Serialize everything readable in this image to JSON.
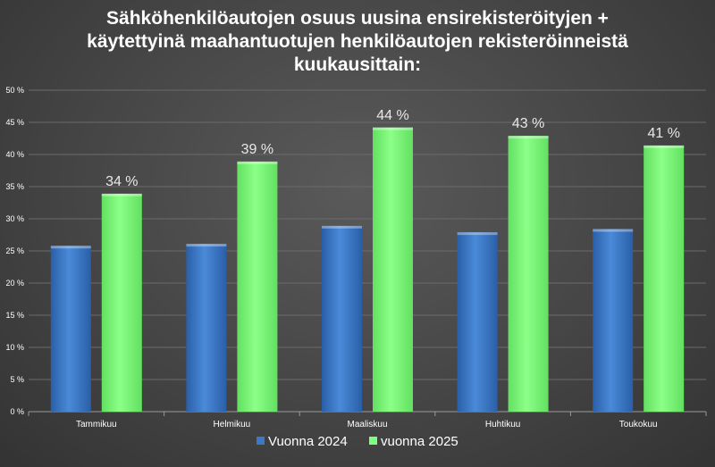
{
  "chart_data": {
    "type": "bar",
    "title_lines": [
      "Sähköhenkilöautojen osuus uusina ensirekisteröityjen +",
      "käytettyinä maahantuotujen henkilöautojen rekisteröinneistä",
      "kuukausittain:"
    ],
    "categories": [
      "Tammikuu",
      "Helmikuu",
      "Maaliskuu",
      "Huhtikuu",
      "Toukokuu"
    ],
    "series": [
      {
        "name": "Vuonna 2024",
        "values": [
          25.8,
          26.1,
          28.9,
          27.9,
          28.4
        ],
        "color": "#3a78c8",
        "data_labels": [
          "",
          "",
          "",
          "",
          ""
        ]
      },
      {
        "name": "vuonna 2025",
        "values": [
          33.9,
          38.9,
          44.2,
          42.9,
          41.4
        ],
        "color": "#7dff7a",
        "data_labels": [
          "34 %",
          "39 %",
          "44 %",
          "43 %",
          "41 %"
        ]
      }
    ],
    "ylim": [
      0,
      50
    ],
    "yticks": [
      0,
      5,
      10,
      15,
      20,
      25,
      30,
      35,
      40,
      45,
      50
    ],
    "ytick_labels": [
      "0 %",
      "5 %",
      "10 %",
      "15 %",
      "20 %",
      "25 %",
      "30 %",
      "35 %",
      "40 %",
      "45 %",
      "50 %"
    ],
    "xlabel": "",
    "ylabel": "",
    "legend_position": "bottom",
    "grid": true
  }
}
